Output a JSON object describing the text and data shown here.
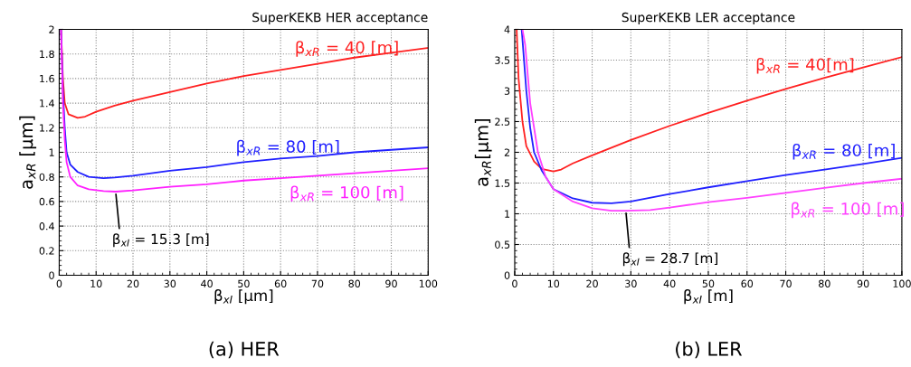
{
  "chart_data": [
    {
      "type": "line",
      "title": "SuperKEKB HER acceptance",
      "xlabel": "β$_{xI}$ [μm]",
      "ylabel": "a$_{xR}$ [μm]",
      "xlim": [
        0,
        100
      ],
      "xticks": [
        0,
        10,
        20,
        30,
        40,
        50,
        60,
        70,
        80,
        90,
        100
      ],
      "ylim": [
        0,
        2
      ],
      "yticks": [
        0,
        0.2,
        0.4,
        0.6,
        0.8,
        1,
        1.2,
        1.4,
        1.6,
        1.8,
        2
      ],
      "grid": true,
      "legend": false,
      "marker": "none",
      "line_style": "solid",
      "series": [
        {
          "name": "β$_{xR}$ = 40 [m]",
          "color": "#ff2020",
          "x": [
            0.5,
            1,
            1.5,
            2.5,
            5,
            7,
            10,
            15,
            20,
            30,
            40,
            50,
            60,
            70,
            80,
            90,
            100
          ],
          "values": [
            2.0,
            1.6,
            1.4,
            1.31,
            1.28,
            1.29,
            1.33,
            1.38,
            1.42,
            1.49,
            1.56,
            1.62,
            1.67,
            1.72,
            1.77,
            1.81,
            1.85
          ]
        },
        {
          "name": "β$_{xR}$ = 80 [m]",
          "color": "#2020ff",
          "x": [
            0.5,
            1,
            1.5,
            2,
            3,
            5,
            8,
            12,
            15,
            20,
            30,
            40,
            50,
            60,
            70,
            80,
            90,
            100
          ],
          "values": [
            2.0,
            1.5,
            1.2,
            1.0,
            0.9,
            0.84,
            0.8,
            0.79,
            0.795,
            0.81,
            0.85,
            0.88,
            0.92,
            0.95,
            0.97,
            1.0,
            1.02,
            1.04
          ]
        },
        {
          "name": "β$_{xR}$ = 100 [m]",
          "color": "#ff20ff",
          "x": [
            0.5,
            1,
            1.5,
            2,
            3,
            5,
            8,
            12,
            15.3,
            20,
            30,
            40,
            50,
            60,
            70,
            80,
            90,
            100
          ],
          "values": [
            2.0,
            1.4,
            1.1,
            0.92,
            0.8,
            0.73,
            0.7,
            0.685,
            0.68,
            0.69,
            0.72,
            0.74,
            0.77,
            0.79,
            0.81,
            0.83,
            0.85,
            0.87
          ]
        }
      ],
      "annotations": [
        {
          "text": "β$_{xI}$ = 15.3 [m]",
          "x": 15.3,
          "y": 0.68
        },
        "(a) HER"
      ]
    },
    {
      "type": "line",
      "title": "SuperKEKB LER acceptance",
      "xlabel": "β$_{xI}$ [m]",
      "ylabel": "a$_{xR}$[μm]",
      "xlim": [
        0,
        100
      ],
      "xticks": [
        0,
        10,
        20,
        30,
        40,
        50,
        60,
        70,
        80,
        90,
        100
      ],
      "ylim": [
        0,
        4
      ],
      "yticks": [
        0,
        0.5,
        1,
        1.5,
        2,
        2.5,
        3,
        3.5,
        4
      ],
      "grid": true,
      "legend": false,
      "marker": "none",
      "line_style": "solid",
      "series": [
        {
          "name": "β$_{xR}$ = 40[m]",
          "color": "#ff2020",
          "x": [
            0.5,
            1,
            2,
            3,
            5,
            7,
            10,
            12,
            15,
            20,
            30,
            40,
            50,
            60,
            70,
            80,
            90,
            100
          ],
          "values": [
            4.0,
            3.2,
            2.5,
            2.1,
            1.85,
            1.73,
            1.69,
            1.72,
            1.82,
            1.95,
            2.2,
            2.43,
            2.64,
            2.84,
            3.03,
            3.21,
            3.38,
            3.55
          ]
        },
        {
          "name": "β$_{xR}$ = 80 [m]",
          "color": "#2020ff",
          "x": [
            1.8,
            3,
            4,
            5,
            7,
            10,
            15,
            20,
            25,
            30,
            40,
            50,
            60,
            70,
            80,
            90,
            100
          ],
          "values": [
            4.0,
            3.0,
            2.4,
            2.0,
            1.7,
            1.4,
            1.25,
            1.18,
            1.17,
            1.2,
            1.32,
            1.43,
            1.53,
            1.63,
            1.72,
            1.81,
            1.91
          ]
        },
        {
          "name": "β$_{xR}$ = 100 [m]",
          "color": "#ff40ff",
          "x": [
            2,
            2.7,
            4,
            6,
            8,
            10,
            15,
            20,
            25,
            28.7,
            35,
            40,
            50,
            60,
            70,
            80,
            90,
            100
          ],
          "values": [
            4.0,
            3.75,
            2.8,
            2.0,
            1.6,
            1.4,
            1.2,
            1.09,
            1.05,
            1.05,
            1.06,
            1.1,
            1.19,
            1.26,
            1.34,
            1.42,
            1.5,
            1.57
          ]
        }
      ],
      "annotations": [
        {
          "text": "β$_{xI}$ = 28.7 [m]",
          "x": 28.7,
          "y": 1.05
        },
        "(b) LER"
      ]
    }
  ]
}
